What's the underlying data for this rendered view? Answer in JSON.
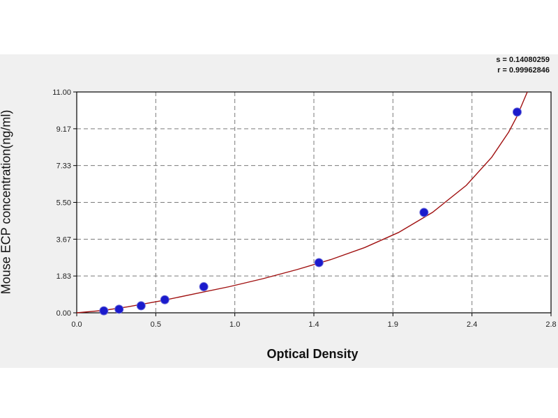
{
  "chart_data": {
    "type": "scatter",
    "xlabel": "Optical Density",
    "ylabel": "Mouse  ECP concentration(ng/ml)",
    "xlim": [
      0.0,
      2.8
    ],
    "ylim": [
      0.0,
      11.0
    ],
    "x_ticks": [
      "0.0",
      "0.5",
      "1.0",
      "1.4",
      "1.9",
      "2.4",
      "2.8"
    ],
    "y_ticks": [
      "0.00",
      "1.83",
      "3.67",
      "5.50",
      "7.33",
      "9.17",
      "11.00"
    ],
    "grid": true,
    "points": [
      {
        "x": 0.16,
        "y": 0.1
      },
      {
        "x": 0.25,
        "y": 0.18
      },
      {
        "x": 0.38,
        "y": 0.35
      },
      {
        "x": 0.52,
        "y": 0.65
      },
      {
        "x": 0.75,
        "y": 1.3
      },
      {
        "x": 1.43,
        "y": 2.5
      },
      {
        "x": 2.05,
        "y": 5.0
      },
      {
        "x": 2.6,
        "y": 10.0
      }
    ],
    "fit_curve": [
      {
        "x": 0.0,
        "y": 0.0
      },
      {
        "x": 0.16,
        "y": 0.12
      },
      {
        "x": 0.3,
        "y": 0.3
      },
      {
        "x": 0.5,
        "y": 0.6
      },
      {
        "x": 0.7,
        "y": 0.95
      },
      {
        "x": 0.9,
        "y": 1.3
      },
      {
        "x": 1.1,
        "y": 1.7
      },
      {
        "x": 1.3,
        "y": 2.15
      },
      {
        "x": 1.5,
        "y": 2.65
      },
      {
        "x": 1.7,
        "y": 3.25
      },
      {
        "x": 1.9,
        "y": 4.0
      },
      {
        "x": 2.1,
        "y": 5.0
      },
      {
        "x": 2.3,
        "y": 6.35
      },
      {
        "x": 2.45,
        "y": 7.75
      },
      {
        "x": 2.55,
        "y": 9.0
      },
      {
        "x": 2.6,
        "y": 9.8
      },
      {
        "x": 2.64,
        "y": 10.6
      },
      {
        "x": 2.66,
        "y": 11.0
      }
    ],
    "point_color": "#1a1acc",
    "curve_color": "#a01010",
    "grid_color": "#7a7a7a"
  },
  "stats": {
    "s": "s = 0.14080259",
    "r": "r = 0.99962846"
  }
}
